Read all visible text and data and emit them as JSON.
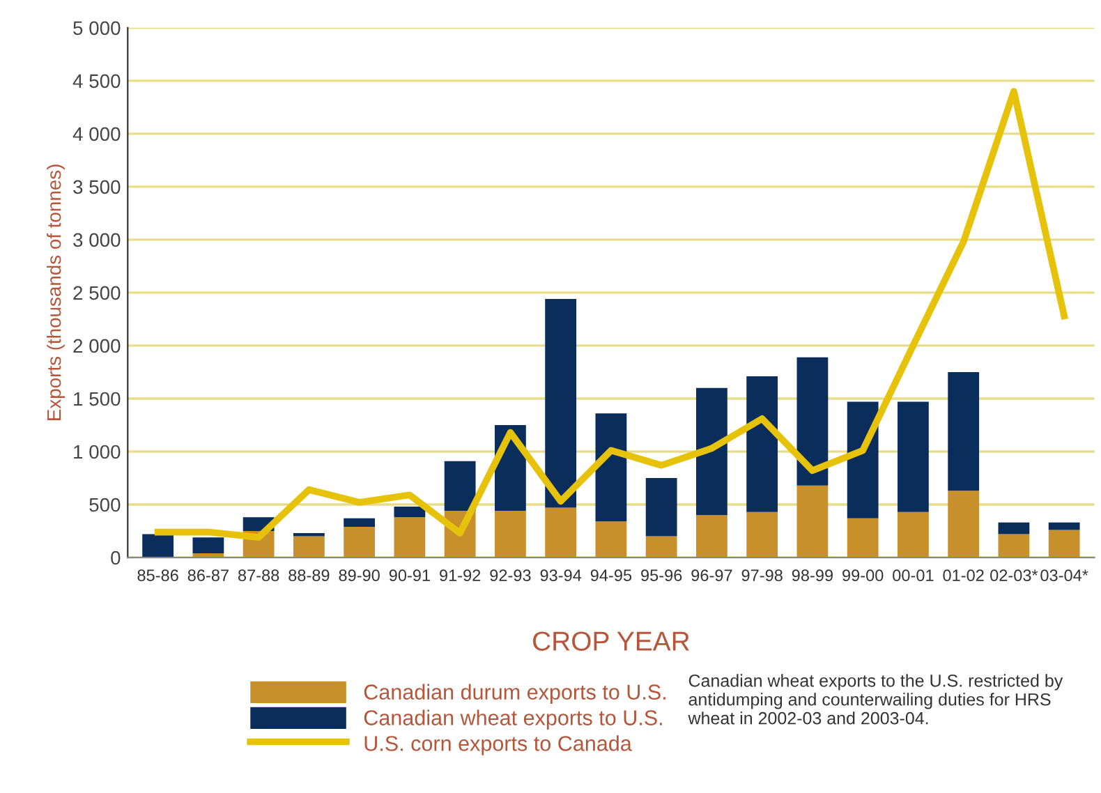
{
  "chart_data": {
    "type": "bar",
    "stacked": true,
    "xlabel": "CROP YEAR",
    "ylabel": "Exports (thousands of tonnes)",
    "categories": [
      "85-86",
      "86-87",
      "87-88",
      "88-89",
      "89-90",
      "90-91",
      "91-92",
      "92-93",
      "93-94",
      "94-95",
      "95-96",
      "96-97",
      "97-98",
      "98-99",
      "99-00",
      "00-01",
      "01-02",
      "02-03*",
      "03-04*"
    ],
    "series": [
      {
        "name": "Canadian durum exports to U.S.",
        "color": "#c8902a",
        "values": [
          0,
          40,
          250,
          200,
          290,
          380,
          440,
          440,
          470,
          340,
          200,
          400,
          430,
          680,
          370,
          430,
          630,
          220,
          260
        ]
      },
      {
        "name": "Canadian wheat exports to U.S.",
        "color": "#0a2d5c",
        "values": [
          220,
          150,
          130,
          30,
          80,
          100,
          470,
          810,
          1970,
          1020,
          550,
          1200,
          1280,
          1210,
          1100,
          1040,
          1120,
          110,
          70
        ]
      },
      {
        "name": "U.S. corn exports to Canada",
        "type": "line",
        "color": "#e6c20a",
        "values": [
          240,
          240,
          190,
          640,
          520,
          590,
          230,
          1180,
          530,
          1010,
          870,
          1030,
          1310,
          820,
          1010,
          2000,
          2980,
          4400,
          2280
        ]
      }
    ],
    "ylim": [
      0,
      5000
    ],
    "yticks": [
      0,
      {
        "value": 500,
        "label": "500"
      },
      {
        "value": 1000,
        "label": "1 000"
      },
      {
        "value": 1500,
        "label": "1 500"
      },
      {
        "value": 2000,
        "label": "2 000"
      },
      {
        "value": 2500,
        "label": "2 500"
      },
      {
        "value": 3000,
        "label": "3 000"
      },
      {
        "value": 3500,
        "label": "3 500"
      },
      {
        "value": 4000,
        "label": "4 000"
      },
      {
        "value": 4500,
        "label": "4 500"
      },
      {
        "value": 5000,
        "label": "5 000"
      }
    ],
    "grid": "y",
    "legend": "bottom left",
    "marker": "none",
    "line_style": "solid",
    "annotations": [
      "Canadian wheat exports to the U.S. restricted by antidumping and counterwailing duties for HRS wheat in 2002-03 and 2003-04."
    ]
  }
}
